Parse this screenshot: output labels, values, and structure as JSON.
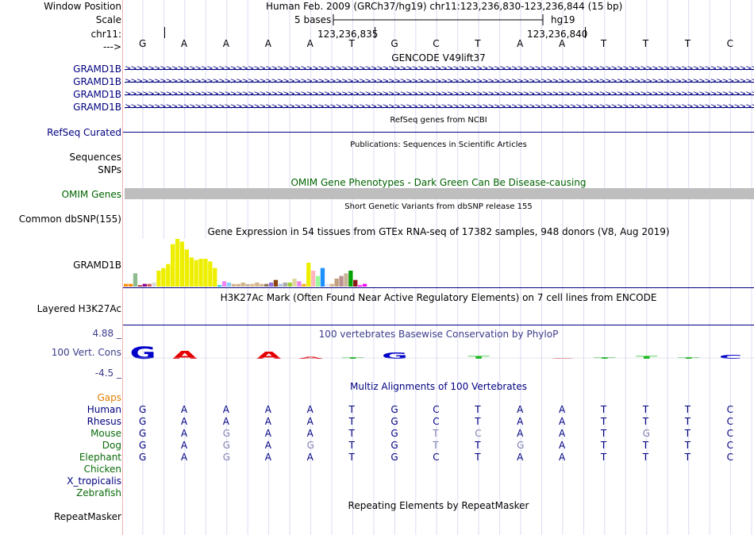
{
  "labels": {
    "window_position": "Window Position",
    "scale": "Scale",
    "chrom": "chr11:",
    "arrow": "--->",
    "gramd1b": "GRAMD1B",
    "refseq": "RefSeq Curated",
    "sequences": "Sequences",
    "snps": "SNPs",
    "omim": "OMIM Genes",
    "dbsnp": "Common dbSNP(155)",
    "gtex_gene": "GRAMD1B",
    "h3k27": "Layered H3K27Ac",
    "cons_max": "4.88 _",
    "cons": "100 Vert. Cons",
    "cons_min": "-4.5 _",
    "gaps": "Gaps",
    "repeatmasker": "RepeatMasker"
  },
  "colors": {
    "label_default": "#000000",
    "label_gene": "#000080",
    "label_omim": "#006400",
    "label_cons": "#3c3c8c",
    "label_gaps": "#e08000",
    "label_green": "#0a6b0a",
    "track_blue": "#000080",
    "omim_bar": "#bebebe",
    "grid": "#d0d0f0",
    "left_sep": "#f0b0b0"
  },
  "header": {
    "position_text": "Human Feb. 2009 (GRCh37/hg19)    chr11:123,236,830-123,236,844 (15 bp)",
    "scale_text": "5 bases",
    "assembly": "hg19",
    "coord_left": "123,236,835",
    "coord_right": "123,236,840"
  },
  "bases": [
    "G",
    "A",
    "A",
    "A",
    "A",
    "T",
    "G",
    "C",
    "T",
    "A",
    "A",
    "T",
    "T",
    "T",
    "C"
  ],
  "tracks": {
    "gencode_title": "GENCODE V49lift37",
    "gencode_rows": [
      "GRAMD1B",
      "GRAMD1B",
      "GRAMD1B",
      "GRAMD1B"
    ],
    "refseq_title": "RefSeq genes from NCBI",
    "publications_title": "Publications: Sequences in Scientific Articles",
    "omim_title": "OMIM Gene Phenotypes - Dark Green Can Be Disease-causing",
    "dbsnp_title": "Short Genetic Variants from dbSNP release 155",
    "gtex_title": "Gene Expression in 54 tissues from GTEx RNA-seq of 17382 samples, 948 donors (V8, Aug 2019)",
    "h3k27_title": "H3K27Ac Mark (Often Found Near Active Regulatory Elements) on 7 cell lines from ENCODE",
    "phylop_title": "100 vertebrates Basewise Conservation by PhyloP",
    "multiz_title": "Multiz Alignments of 100 Vertebrates",
    "repeat_title": "Repeating Elements by RepeatMasker"
  },
  "gtex": {
    "values": [
      2,
      2,
      10,
      1,
      2,
      2,
      3,
      12,
      14,
      17,
      32,
      36,
      34,
      28,
      22,
      20,
      21,
      21,
      19,
      14,
      1,
      4,
      3,
      2,
      2,
      3,
      2,
      2,
      3,
      2,
      2,
      3,
      5,
      2,
      3,
      3,
      6,
      4,
      2,
      18,
      12,
      8,
      14,
      2,
      2,
      6,
      8,
      10,
      12,
      5,
      1,
      2
    ],
    "colors": [
      "#ff8c00",
      "#ff8c00",
      "#8fbc8f",
      "#a52a2a",
      "#8b008b",
      "#cd5c5c",
      "#dcdcdc",
      "#eeee00",
      "#eeee00",
      "#eeee00",
      "#eeee00",
      "#eeee00",
      "#eeee00",
      "#eeee00",
      "#eeee00",
      "#eeee00",
      "#eeee00",
      "#eeee00",
      "#eeee00",
      "#eeee00",
      "#00ced1",
      "#ee82ee",
      "#87cefa",
      "#d2b48c",
      "#d2b48c",
      "#d2b48c",
      "#cdb79e",
      "#deb887",
      "#d2b48c",
      "#d2b48c",
      "#8b7355",
      "#9370db",
      "#8b4513",
      "#b0c4de",
      "#a9a9a9",
      "#9acd32",
      "#ddd8a0",
      "#ee82ee",
      "#eeb422",
      "#eeee00",
      "#ffb6c1",
      "#98fb98",
      "#1e90ff",
      "#e6e6fa",
      "#d2b48c",
      "#c0a080",
      "#bc8f8f",
      "#c8b496",
      "#00a000",
      "#8b1a1a",
      "#ff00ff",
      "#ee00ee"
    ],
    "vmax": 36
  },
  "phylop": [
    3.5,
    2.2,
    0,
    2.0,
    0.6,
    0.4,
    1.8,
    0,
    0.7,
    0,
    0.2,
    0.4,
    0.7,
    0.4,
    1.2
  ],
  "multiz": {
    "species": [
      {
        "name": "Human",
        "bases": [
          "G",
          "A",
          "A",
          "A",
          "A",
          "T",
          "G",
          "C",
          "T",
          "A",
          "A",
          "T",
          "T",
          "T",
          "C"
        ],
        "faded": []
      },
      {
        "name": "Rhesus",
        "bases": [
          "G",
          "A",
          "A",
          "A",
          "A",
          "T",
          "G",
          "C",
          "T",
          "A",
          "A",
          "T",
          "T",
          "T",
          "C"
        ],
        "faded": []
      },
      {
        "name": "Mouse",
        "bases": [
          "G",
          "A",
          "G",
          "A",
          "A",
          "T",
          "G",
          "T",
          "C",
          "A",
          "A",
          "T",
          "G",
          "T",
          "C"
        ],
        "faded": [
          2,
          7,
          8,
          12
        ]
      },
      {
        "name": "Dog",
        "bases": [
          "G",
          "A",
          "G",
          "A",
          "G",
          "T",
          "G",
          "T",
          "T",
          "G",
          "A",
          "T",
          "T",
          "T",
          "C"
        ],
        "faded": [
          2,
          4,
          7,
          9
        ]
      },
      {
        "name": "Elephant",
        "bases": [
          "G",
          "A",
          "G",
          "A",
          "A",
          "T",
          "G",
          "C",
          "T",
          "A",
          "A",
          "T",
          "T",
          "T",
          "C"
        ],
        "faded": [
          2
        ]
      },
      {
        "name": "Chicken",
        "bases": [],
        "faded": []
      },
      {
        "name": "X_tropicalis",
        "bases": [],
        "faded": []
      },
      {
        "name": "Zebrafish",
        "bases": [],
        "faded": []
      }
    ]
  }
}
